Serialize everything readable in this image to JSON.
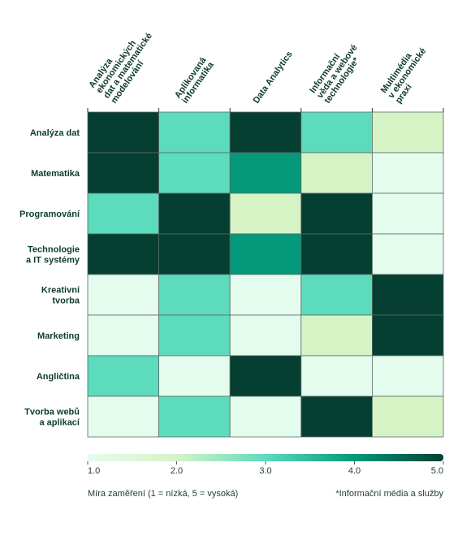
{
  "chart_data": {
    "type": "heatmap",
    "columns": [
      [
        "Analýza",
        "ekonomických",
        "dat a matematické",
        "modelování"
      ],
      [
        "Aplikovaná",
        "informatika"
      ],
      [
        "Data Analytics"
      ],
      [
        "Informační",
        "věda a webové",
        "technologie*"
      ],
      [
        "Multimédia",
        "v ekonomické",
        "praxi"
      ]
    ],
    "rows": [
      [
        "Analýza dat"
      ],
      [
        "Matematika"
      ],
      [
        "Programování"
      ],
      [
        "Technologie",
        "a IT systémy"
      ],
      [
        "Kreativní",
        "tvorba"
      ],
      [
        "Marketing"
      ],
      [
        "Angličtina"
      ],
      [
        "Tvorba webů",
        "a aplikací"
      ]
    ],
    "values": [
      [
        5,
        3,
        5,
        3,
        2
      ],
      [
        5,
        3,
        4,
        2,
        1
      ],
      [
        3,
        5,
        2,
        5,
        1
      ],
      [
        5,
        5,
        4,
        5,
        1
      ],
      [
        1,
        3,
        1,
        3,
        5
      ],
      [
        1,
        3,
        1,
        2,
        5
      ],
      [
        3,
        1,
        5,
        1,
        1
      ],
      [
        1,
        3,
        1,
        5,
        2
      ]
    ],
    "colorscale": {
      "min": 1,
      "max": 5,
      "colors": [
        "#e3fcee",
        "#d6f3c6",
        "#5cdbbd",
        "#04997a",
        "#053f32"
      ]
    },
    "colorbar_ticks": [
      "1.0",
      "2.0",
      "3.0",
      "4.0",
      "5.0"
    ],
    "legend_label": "Míra zaměření (1 = nízká, 5 = vysoká)",
    "footnote": "*Informační média a služby"
  }
}
